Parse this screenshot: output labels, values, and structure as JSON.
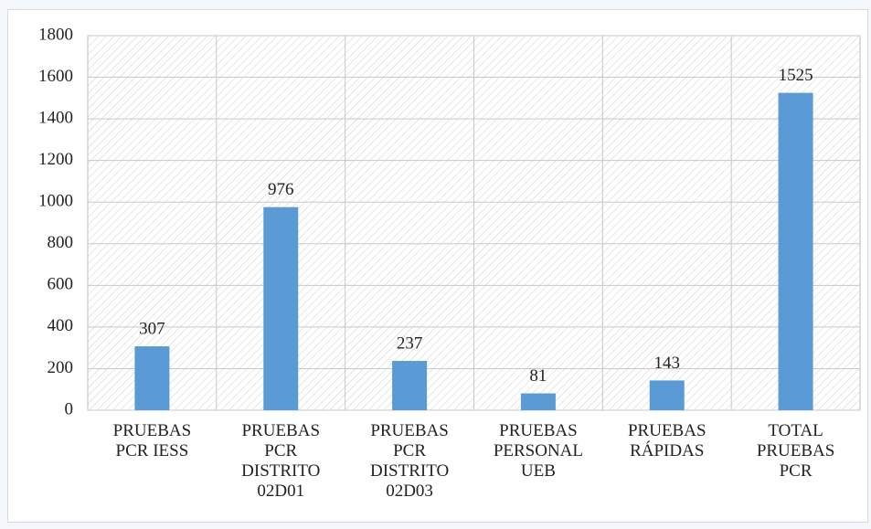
{
  "chart_data": {
    "type": "bar",
    "categories": [
      "PRUEBAS\nPCR IESS",
      "PRUEBAS\nPCR\nDISTRITO\n02D01",
      "PRUEBAS\nPCR\nDISTRITO\n02D03",
      "PRUEBAS\nPERSONAL\nUEB",
      "PRUEBAS\nRÁPIDAS",
      "TOTAL\nPRUEBAS\nPCR"
    ],
    "values": [
      307,
      976,
      237,
      81,
      143,
      1525
    ],
    "color": "#5b9bd5",
    "ylim": [
      0,
      1800
    ],
    "yticks": [
      0,
      200,
      400,
      600,
      800,
      1000,
      1200,
      1400,
      1600,
      1800
    ],
    "grid": true
  }
}
